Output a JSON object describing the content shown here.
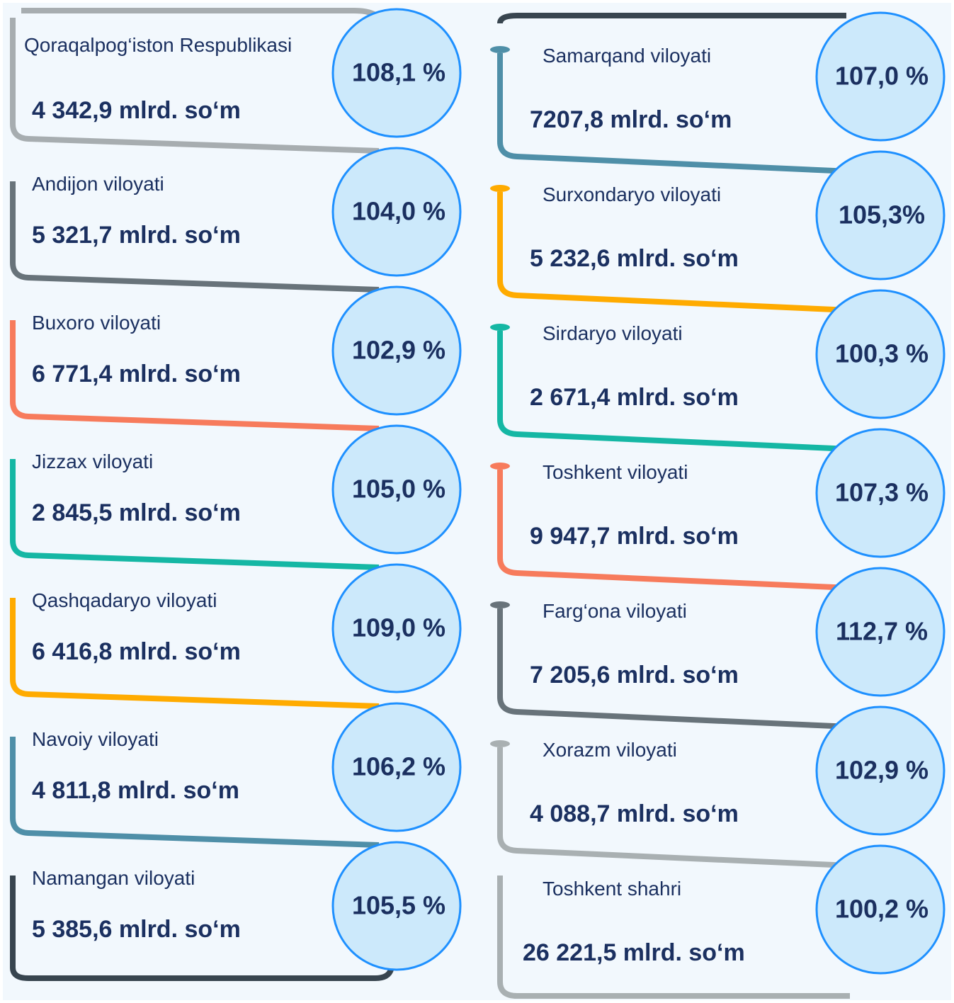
{
  "left": [
    {
      "name": "Qoraqalpog‘iston Respublikasi",
      "amount": "4 342,9 mlrd. so‘m",
      "percent": "108,1 %",
      "color": "#a7adb0"
    },
    {
      "name": "Andijon viloyati",
      "amount": "5 321,7 mlrd. so‘m",
      "percent": "104,0 %",
      "color": "#68737a"
    },
    {
      "name": "Buxoro viloyati",
      "amount": "6 771,4 mlrd. so‘m",
      "percent": "102,9 %",
      "color": "#f77b5c"
    },
    {
      "name": "Jizzax viloyati",
      "amount": "2 845,5 mlrd. so‘m",
      "percent": "105,0 %",
      "color": "#15b7a4"
    },
    {
      "name": "Qashqadaryo viloyati",
      "amount": "6 416,8 mlrd. so‘m",
      "percent": "109,0 %",
      "color": "#ffab00"
    },
    {
      "name": "Navoiy viloyati",
      "amount": "4 811,8 mlrd. so‘m",
      "percent": "106,2 %",
      "color": "#4f8fa8"
    },
    {
      "name": "Namangan viloyati",
      "amount": "5 385,6 mlrd. so‘m",
      "percent": "105,5 %",
      "color": "#38454f"
    }
  ],
  "right": [
    {
      "name": "Samarqand viloyati",
      "amount": "7207,8 mlrd. so‘m",
      "percent": "107,0 %",
      "color": "#4f8fa8"
    },
    {
      "name": "Surxondaryo viloyati",
      "amount": "5 232,6 mlrd. so‘m",
      "percent": "105,3%",
      "color": "#ffab00"
    },
    {
      "name": "Sirdaryo viloyati",
      "amount": "2 671,4 mlrd. so‘m",
      "percent": "100,3 %",
      "color": "#15b7a4"
    },
    {
      "name": "Toshkent viloyati",
      "amount": "9 947,7 mlrd. so‘m",
      "percent": "107,3 %",
      "color": "#f77b5c"
    },
    {
      "name": "Farg‘ona viloyati",
      "amount": "7 205,6 mlrd. so‘m",
      "percent": "112,7 %",
      "color": "#68737a"
    },
    {
      "name": "Xorazm viloyati",
      "amount": "4 088,7 mlrd. so‘m",
      "percent": "102,9 %",
      "color": "#a9b0b2"
    },
    {
      "name": "Toshkent shahri",
      "amount": "26 221,5 mlrd. so‘m",
      "percent": "100,2 %",
      "color": "#a9b0b2"
    }
  ]
}
